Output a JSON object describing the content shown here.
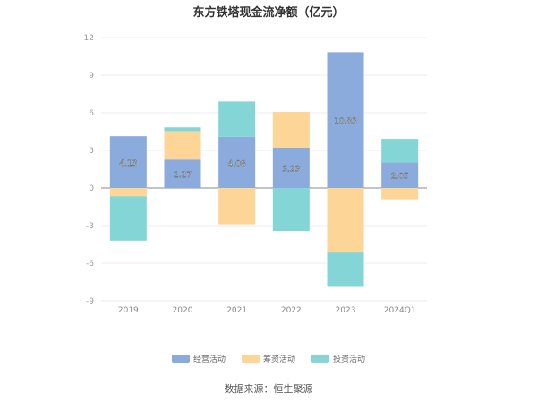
{
  "chart_data": {
    "type": "bar",
    "stacked": true,
    "title": "东方铁塔现金流净额（亿元）",
    "categories": [
      "2019",
      "2020",
      "2021",
      "2022",
      "2023",
      "2024Q1"
    ],
    "ylim": [
      -9,
      12
    ],
    "yticks": [
      12,
      9,
      6,
      3,
      0,
      -3,
      -6,
      -9
    ],
    "grid": true,
    "legend_position": "bottom",
    "series": [
      {
        "name": "经营活动",
        "color": "#8aabdb",
        "values": [
          4.13,
          2.27,
          4.08,
          3.23,
          10.83,
          2.05
        ],
        "labels": [
          "4.13",
          "2.27",
          "4.08",
          "3.23",
          "10.83",
          "2.05"
        ]
      },
      {
        "name": "筹资活动",
        "color": "#fdd597",
        "values": [
          -0.66,
          2.27,
          -2.9,
          2.84,
          -5.15,
          -0.9
        ]
      },
      {
        "name": "投资活动",
        "color": "#84d5d6",
        "values": [
          -3.54,
          0.3,
          2.82,
          -3.43,
          -2.67,
          1.87
        ]
      }
    ]
  },
  "source": "数据来源：恒生聚源"
}
